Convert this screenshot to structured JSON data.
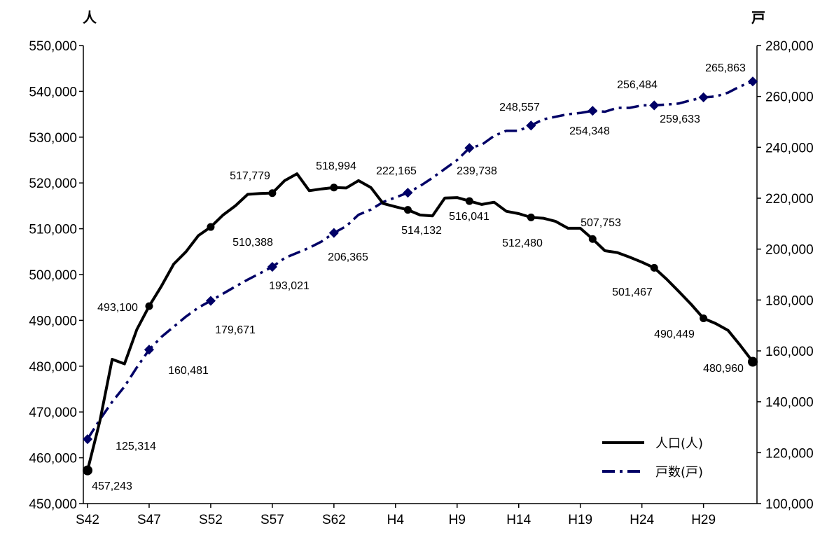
{
  "chart_data": {
    "type": "line",
    "title": "",
    "left_axis_unit": "人",
    "right_axis_unit": "戸",
    "left_ylim": [
      450000,
      550000
    ],
    "left_ticks": [
      "450,000",
      "460,000",
      "470,000",
      "480,000",
      "490,000",
      "500,000",
      "510,000",
      "520,000",
      "530,000",
      "540,000",
      "550,000"
    ],
    "right_ylim": [
      100000,
      280000
    ],
    "right_ticks": [
      "100,000",
      "120,000",
      "140,000",
      "160,000",
      "180,000",
      "200,000",
      "220,000",
      "240,000",
      "260,000",
      "280,000"
    ],
    "grid": false,
    "legend_position": "bottom-right",
    "x_labels": [
      "S42",
      "S47",
      "S52",
      "S57",
      "S62",
      "H4",
      "H9",
      "H14",
      "H19",
      "H24",
      "H29"
    ],
    "series": [
      {
        "name": "人口(人)",
        "axis": "left",
        "color": "#000000",
        "style": "solid",
        "values": [
          457243,
          468000,
          481500,
          480500,
          488000,
          493100,
          497500,
          502300,
          505000,
          508500,
          510388,
          513000,
          515000,
          517500,
          517700,
          517779,
          520500,
          522000,
          518300,
          518700,
          518994,
          518900,
          520500,
          519000,
          515500,
          514800,
          514132,
          513000,
          512800,
          516700,
          516800,
          516041,
          515300,
          515800,
          513800,
          513300,
          512480,
          512300,
          511600,
          510100,
          510100,
          507753,
          505200,
          504800,
          503800,
          502700,
          501467,
          499000,
          496300,
          493500,
          490449,
          489300,
          487800,
          484500,
          480960
        ]
      },
      {
        "name": "戸数(戸)",
        "axis": "right",
        "color": "#000066",
        "style": "dashdot",
        "values": [
          125314,
          133000,
          140000,
          146000,
          153500,
          160481,
          165500,
          169500,
          173500,
          177000,
          179671,
          182500,
          185300,
          188000,
          190500,
          193021,
          196500,
          198500,
          200500,
          203000,
          206365,
          209000,
          213500,
          215500,
          218500,
          220300,
          222165,
          224800,
          228000,
          231500,
          235000,
          239738,
          241000,
          244500,
          246500,
          246500,
          248557,
          251000,
          252000,
          253000,
          253500,
          254348,
          254000,
          255500,
          255500,
          256500,
          256484,
          256800,
          257200,
          258500,
          259633,
          260000,
          261500,
          264000,
          265863
        ]
      }
    ],
    "data_labels": {
      "population": [
        {
          "index": 0,
          "text": "457,243"
        },
        {
          "index": 5,
          "text": "493,100"
        },
        {
          "index": 10,
          "text": "510,388"
        },
        {
          "index": 15,
          "text": "517,779"
        },
        {
          "index": 20,
          "text": "518,994"
        },
        {
          "index": 26,
          "text": "514,132"
        },
        {
          "index": 31,
          "text": "516,041"
        },
        {
          "index": 36,
          "text": "512,480"
        },
        {
          "index": 41,
          "text": "507,753"
        },
        {
          "index": 46,
          "text": "501,467"
        },
        {
          "index": 50,
          "text": "490,449"
        },
        {
          "index": 54,
          "text": "480,960"
        }
      ],
      "households": [
        {
          "index": 0,
          "text": "125,314"
        },
        {
          "index": 5,
          "text": "160,481"
        },
        {
          "index": 10,
          "text": "179,671"
        },
        {
          "index": 15,
          "text": "193,021"
        },
        {
          "index": 20,
          "text": "206,365"
        },
        {
          "index": 26,
          "text": "222,165"
        },
        {
          "index": 31,
          "text": "239,738"
        },
        {
          "index": 36,
          "text": "248,557"
        },
        {
          "index": 41,
          "text": "254,348"
        },
        {
          "index": 46,
          "text": "256,484"
        },
        {
          "index": 50,
          "text": "259,633"
        },
        {
          "index": 54,
          "text": "265,863"
        }
      ]
    }
  }
}
